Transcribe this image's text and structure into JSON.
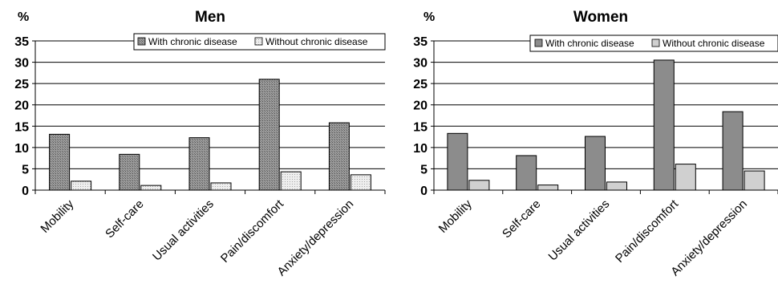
{
  "colors": {
    "men_with": "#8a8a8a",
    "men_without": "#e6e6e6",
    "women_with": "#8c8c8c",
    "women_without": "#d0d0d0",
    "axis": "#000000",
    "grid": "#000000"
  },
  "chart_data": [
    {
      "type": "bar",
      "title": "Men",
      "ylabel": "%",
      "ylim": [
        0,
        35
      ],
      "yticks": [
        0,
        5,
        10,
        15,
        20,
        25,
        30,
        35
      ],
      "grid": true,
      "legend_placement": "top-right",
      "categories": [
        "Mobility",
        "Self-care",
        "Usual activities",
        "Pain/discomfort",
        "Anxiety/depression"
      ],
      "series": [
        {
          "name": "With chronic disease",
          "values": [
            13.1,
            8.4,
            12.3,
            26.0,
            15.8
          ]
        },
        {
          "name": "Without chronic disease",
          "values": [
            2.1,
            1.1,
            1.7,
            4.3,
            3.6
          ]
        }
      ]
    },
    {
      "type": "bar",
      "title": "Women",
      "ylabel": "%",
      "ylim": [
        0,
        35
      ],
      "yticks": [
        0,
        5,
        10,
        15,
        20,
        25,
        30,
        35
      ],
      "grid": true,
      "legend_placement": "top-right",
      "categories": [
        "Mobility",
        "Self-care",
        "Usual activities",
        "Pain/discomfort",
        "Anxiety/depression"
      ],
      "series": [
        {
          "name": "With chronic disease",
          "values": [
            13.3,
            8.1,
            12.6,
            30.5,
            18.4
          ]
        },
        {
          "name": "Without chronic disease",
          "values": [
            2.3,
            1.2,
            1.9,
            6.1,
            4.5
          ]
        }
      ]
    }
  ]
}
